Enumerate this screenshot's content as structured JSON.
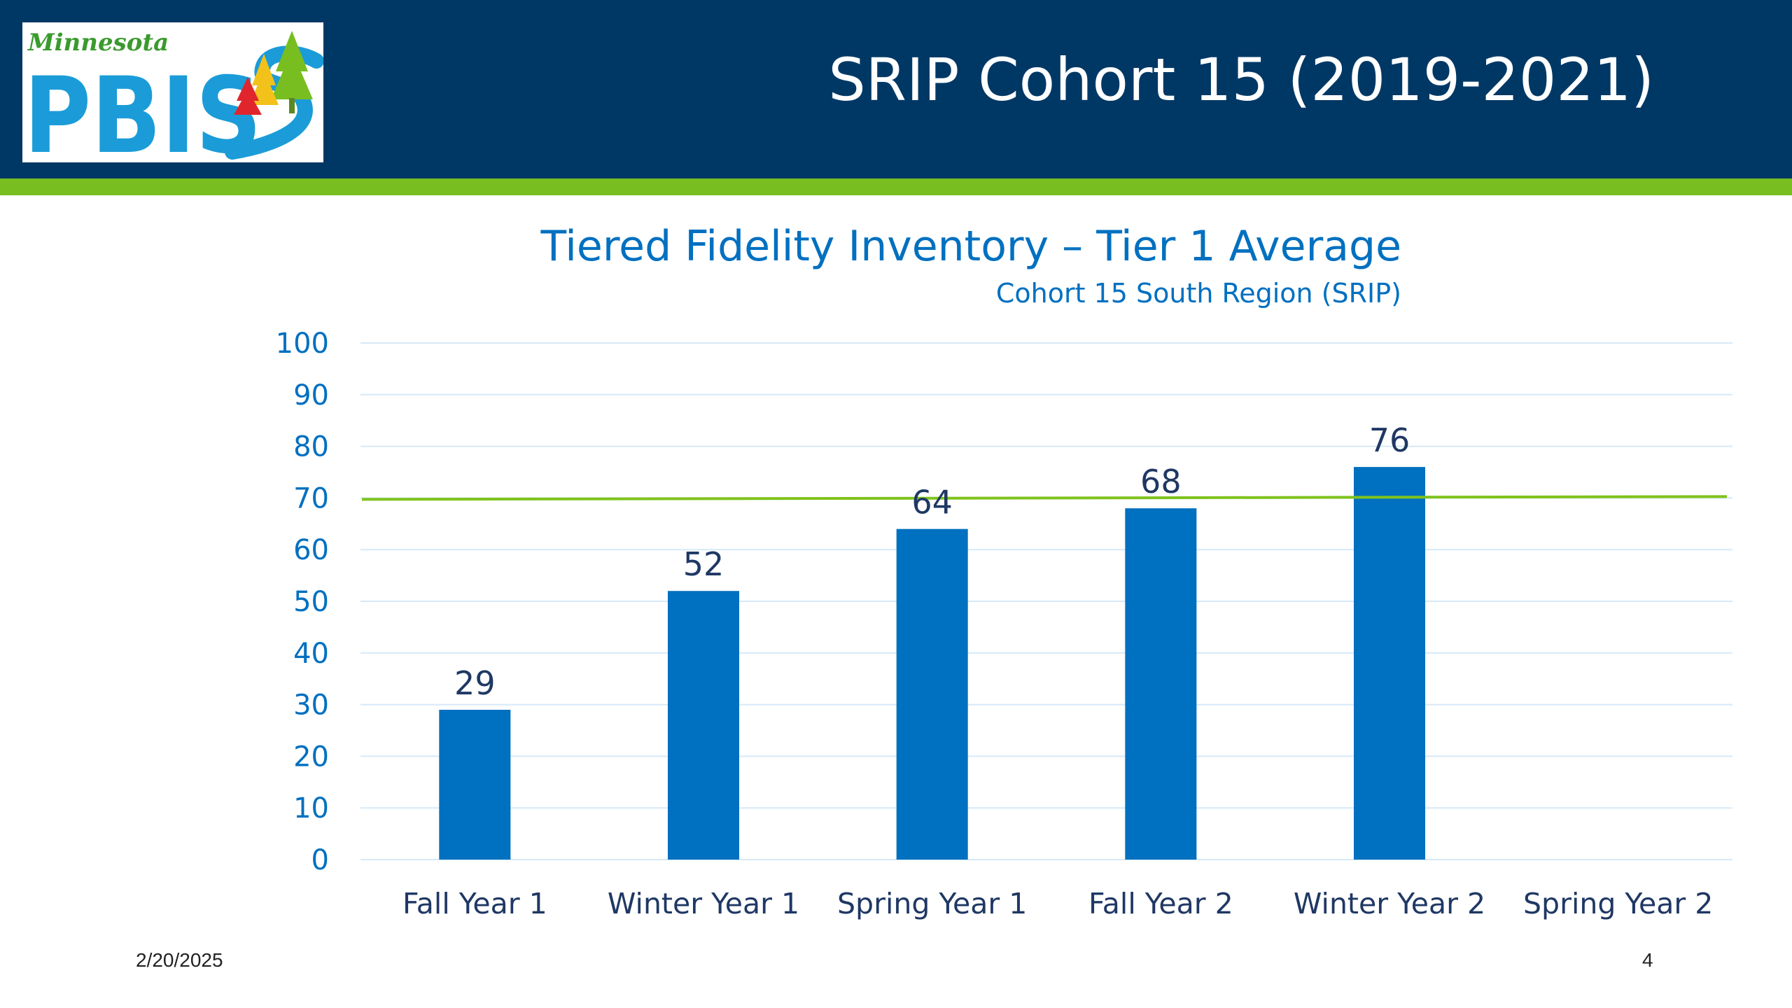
{
  "header": {
    "logo_state": "Minnesota",
    "logo_text": "PBIS",
    "title": "SRIP Cohort 15 (2019-2021)",
    "background_color": "#003865",
    "accent_color": "#78be20"
  },
  "footer": {
    "date": "2/20/2025",
    "page_number": "4"
  },
  "chart_data": {
    "type": "bar",
    "title": "Tiered Fidelity Inventory – Tier 1 Average",
    "subtitle": "Cohort 15 South Region (SRIP)",
    "categories": [
      "Fall Year 1",
      "Winter Year 1",
      "Spring Year 1",
      "Fall Year 2",
      "Winter Year 2",
      "Spring Year 2"
    ],
    "values": [
      29,
      52,
      64,
      68,
      76,
      null
    ],
    "data_labels": [
      "29",
      "52",
      "64",
      "68",
      "76",
      ""
    ],
    "ylim": [
      0,
      100
    ],
    "yticks": [
      "0",
      "10",
      "20",
      "30",
      "40",
      "50",
      "60",
      "70",
      "80",
      "90",
      "100"
    ],
    "reference_line": 70,
    "grid": true,
    "legend": "none",
    "bar_color": "#0070c0",
    "reference_line_color": "#7fc31c",
    "grid_color": "#d6e9f8",
    "tick_label_color": "#0070c0",
    "category_label_color": "#1f3864",
    "data_label_color": "#1f3864"
  }
}
